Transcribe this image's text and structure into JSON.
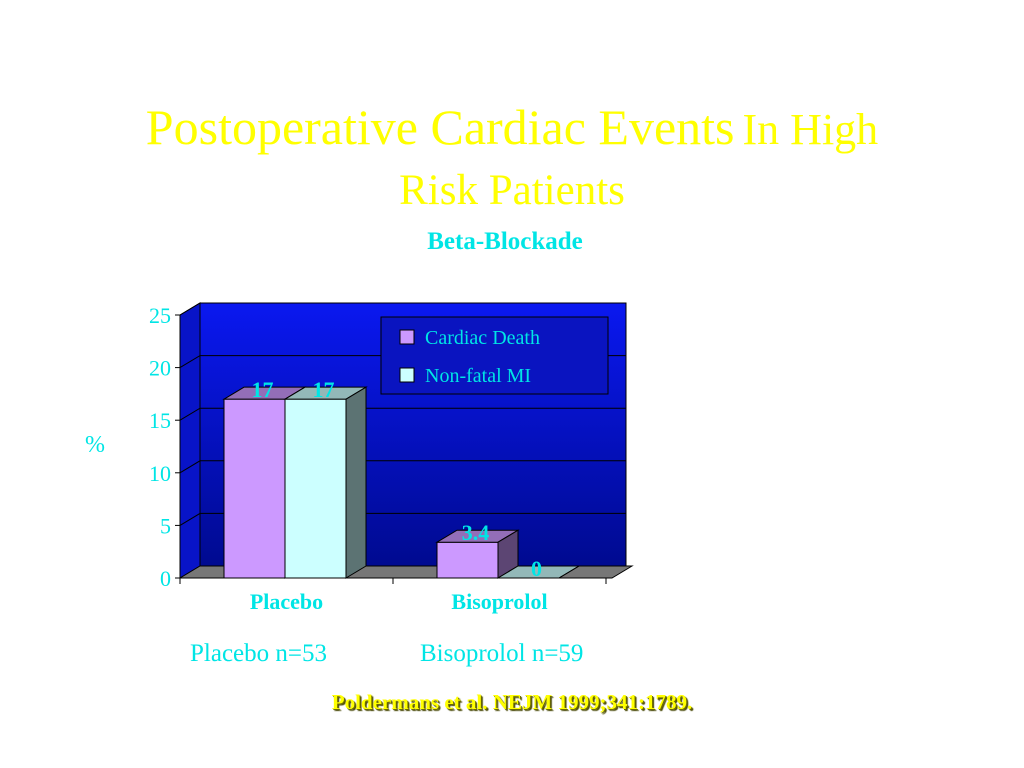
{
  "title": {
    "line1_main": "Postoperative Cardiac Events",
    "line1_rest": "In High",
    "line2": "Risk Patients"
  },
  "subtitle": "Beta-Blockade",
  "sample_sizes": {
    "placebo": "Placebo n=53",
    "bisoprolol": "Bisoprolol n=59"
  },
  "citation": "Poldermans et al. NEJM 1999;341:1789.",
  "chart_data": {
    "type": "bar",
    "categories": [
      "Placebo",
      "Bisoprolol"
    ],
    "series": [
      {
        "name": "Cardiac Death",
        "values": [
          17,
          3.4
        ],
        "color": "#cc99ff",
        "data_labels": [
          "17",
          "3.4"
        ]
      },
      {
        "name": "Non-fatal MI",
        "values": [
          17,
          0
        ],
        "color": "#ccffff",
        "data_labels": [
          "17",
          "0"
        ]
      }
    ],
    "ylabel": "%",
    "ylim": [
      0,
      25
    ],
    "yticks": [
      0,
      5,
      10,
      15,
      20,
      25
    ],
    "grid": true,
    "legend_position": "top-right",
    "plot_background": "#0a14e6",
    "text_color": "#00e5e5",
    "data_label_color": "#00e5e5"
  }
}
